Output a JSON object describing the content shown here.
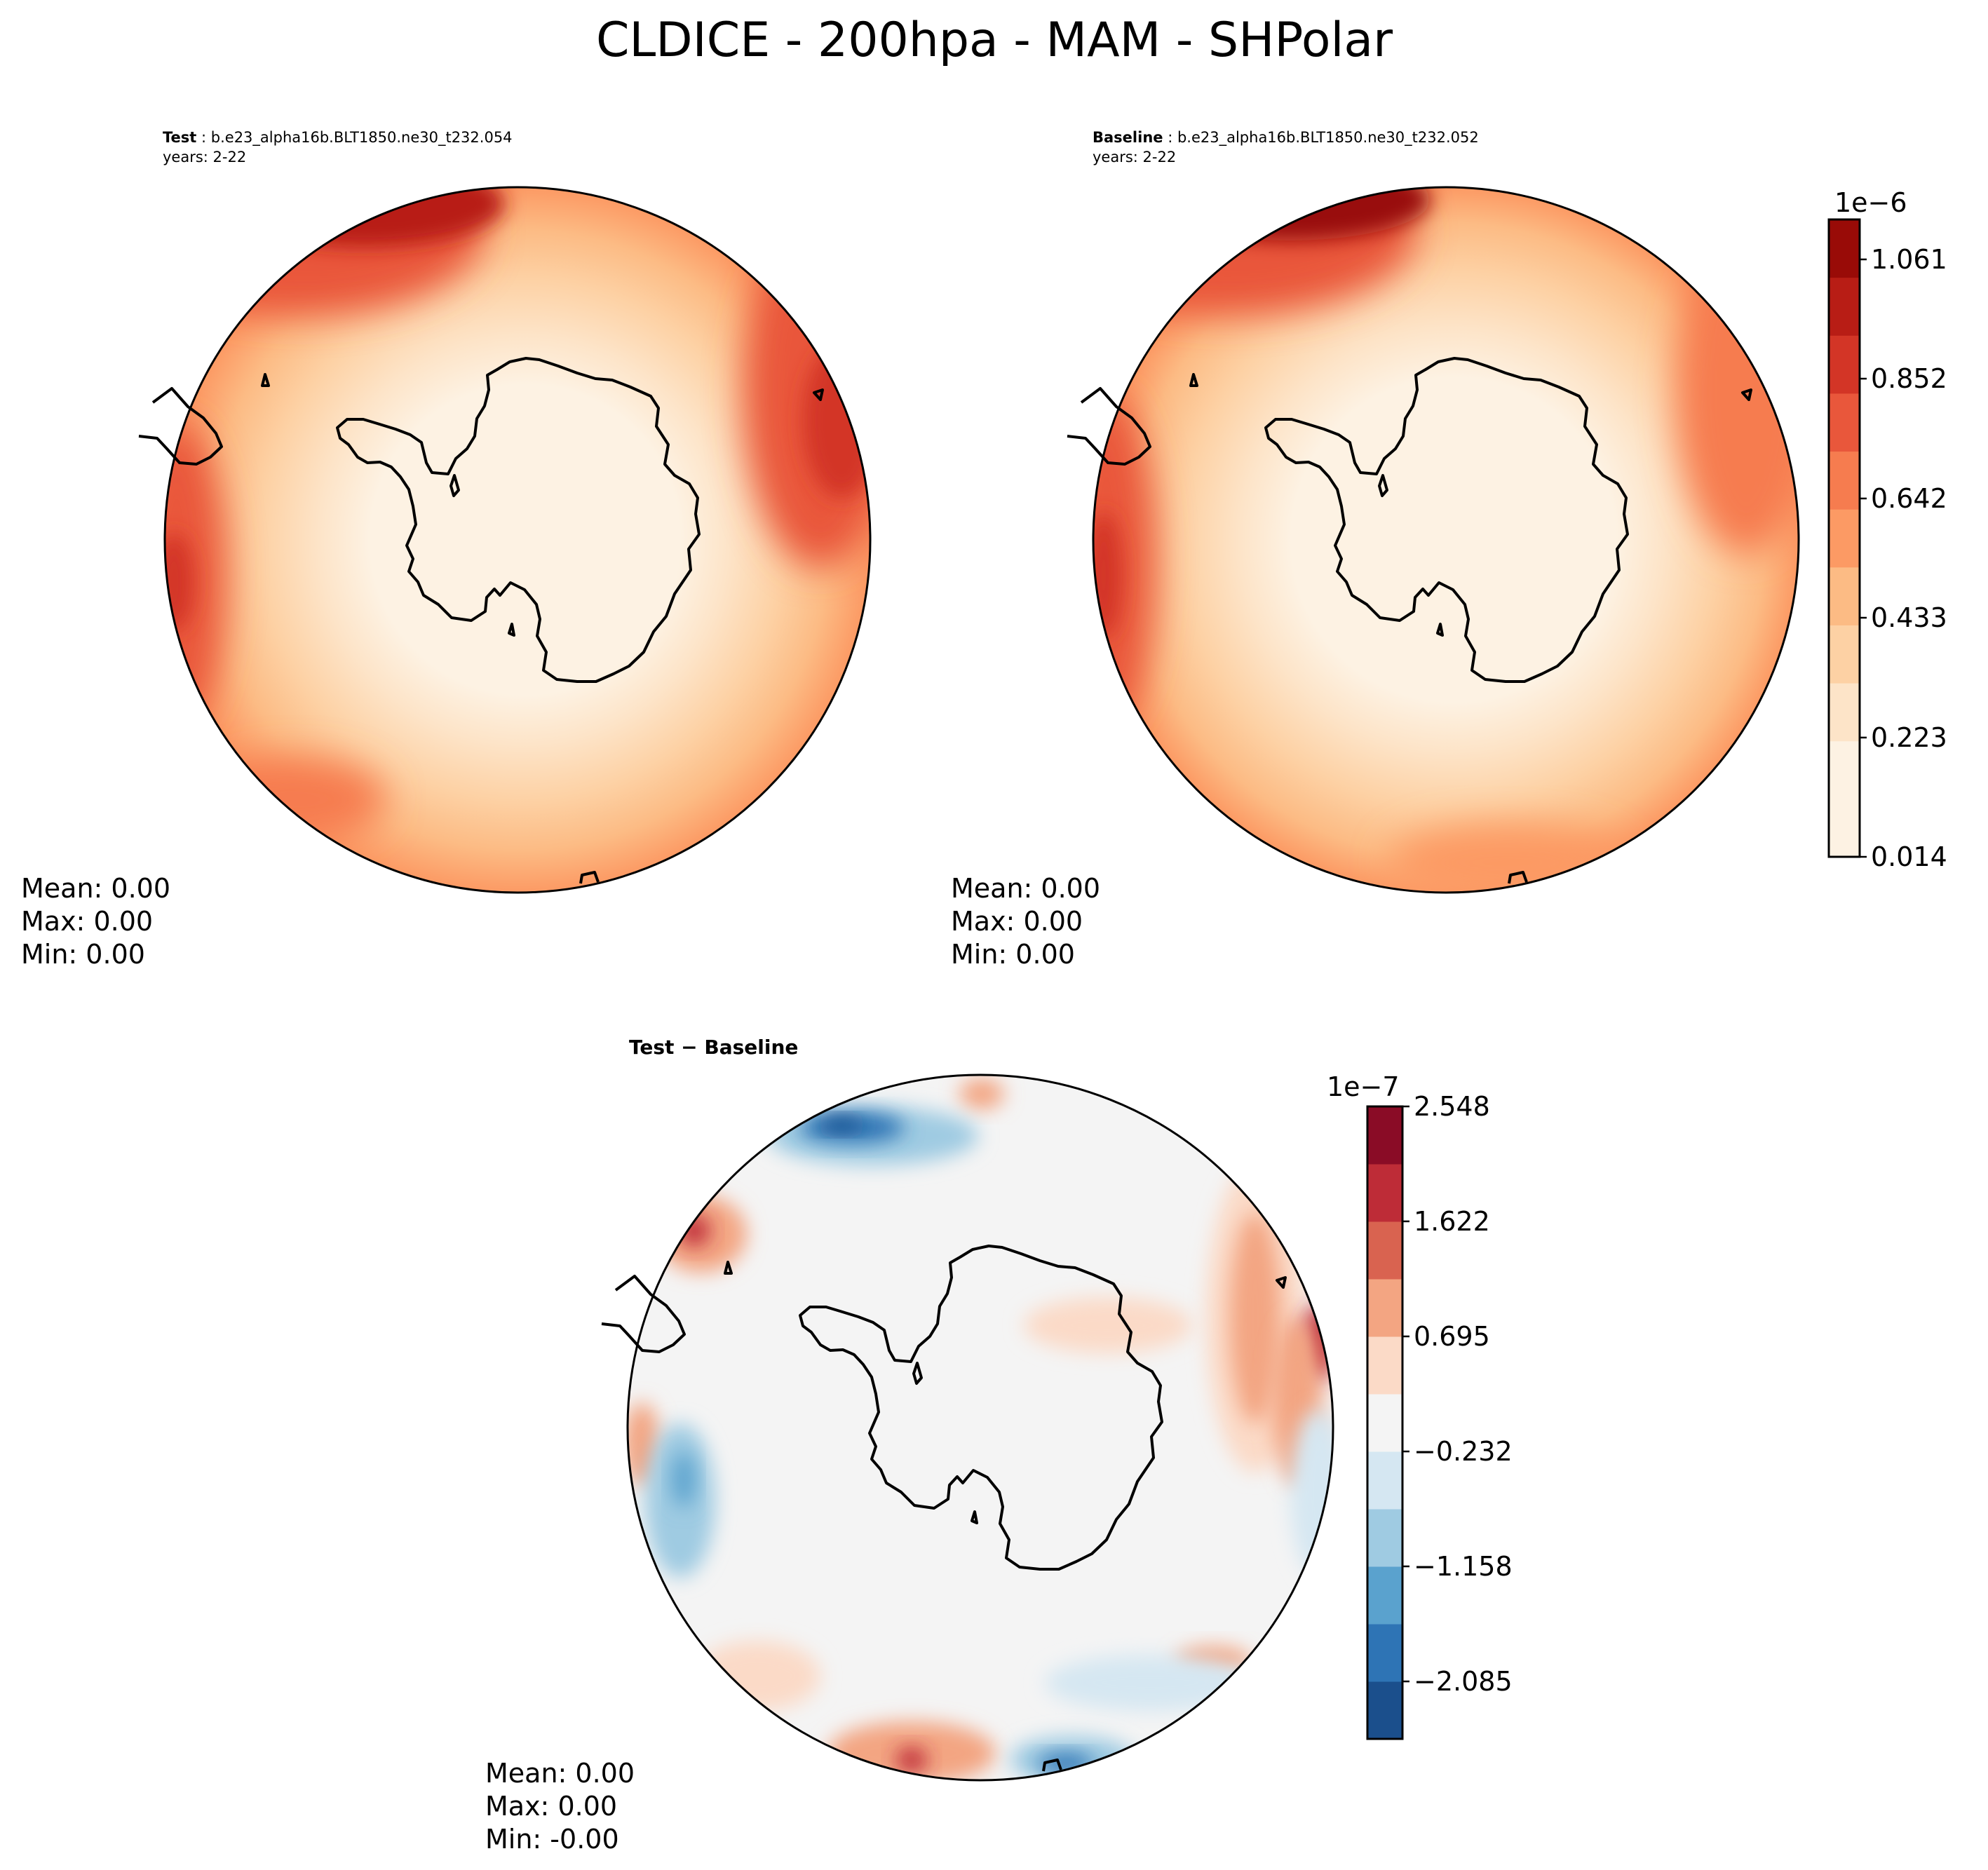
{
  "figure_title": "CLDICE - 200hpa - MAM - SHPolar",
  "colors": {
    "coast": "#000000",
    "reds_scale": [
      "#fdf2e3",
      "#fde4c8",
      "#fdd1a4",
      "#fcbb84",
      "#fc9a64",
      "#f67c4f",
      "#e9573b",
      "#d33526",
      "#b81d15",
      "#990b07"
    ],
    "diff_scale": [
      "#1b4f8c",
      "#2e74b5",
      "#5aa2ce",
      "#9fcbe2",
      "#d5e7f2",
      "#f4f4f4",
      "#fbdac7",
      "#f3a582",
      "#d96350",
      "#be2c37",
      "#8a0c26"
    ]
  },
  "chart_data": [
    {
      "type": "heatmap",
      "projection": "south-polar-stereographic",
      "panel": "test",
      "title_label": "Test",
      "title_case": "b.e23_alpha16b.BLT1850.ne30_t232.054",
      "years": "years: 2-22",
      "stats": {
        "mean": "Mean:  0.00",
        "max": "Max:  0.00",
        "min": "Min:  0.00"
      }
    },
    {
      "type": "heatmap",
      "projection": "south-polar-stereographic",
      "panel": "baseline",
      "title_label": "Baseline",
      "title_case": "b.e23_alpha16b.BLT1850.ne30_t232.052",
      "years": "years: 2-22",
      "stats": {
        "mean": "Mean:  0.00",
        "max": "Max:  0.00",
        "min": "Min:  0.00"
      },
      "colorbar": {
        "exponent": "1e−6",
        "range": [
          0.014,
          1.131
        ],
        "ticks": [
          0.014,
          0.223,
          0.433,
          0.642,
          0.852,
          1.061
        ],
        "tick_labels": [
          "0.014",
          "0.223",
          "0.433",
          "0.642",
          "0.852",
          "1.061"
        ],
        "n_levels": 11
      }
    },
    {
      "type": "heatmap",
      "projection": "south-polar-stereographic",
      "panel": "difference",
      "title": "Test − Baseline",
      "stats": {
        "mean": "Mean:  0.00",
        "max": "Max:  0.00",
        "min": "Min: -0.00"
      },
      "colorbar": {
        "exponent": "1e−7",
        "range": [
          -2.548,
          2.548
        ],
        "ticks": [
          -2.085,
          -1.158,
          -0.232,
          0.695,
          1.622,
          2.548
        ],
        "tick_labels": [
          "−2.085",
          "−1.158",
          "−0.232",
          "0.695",
          "1.622",
          "2.548"
        ],
        "n_levels": 11
      }
    }
  ]
}
